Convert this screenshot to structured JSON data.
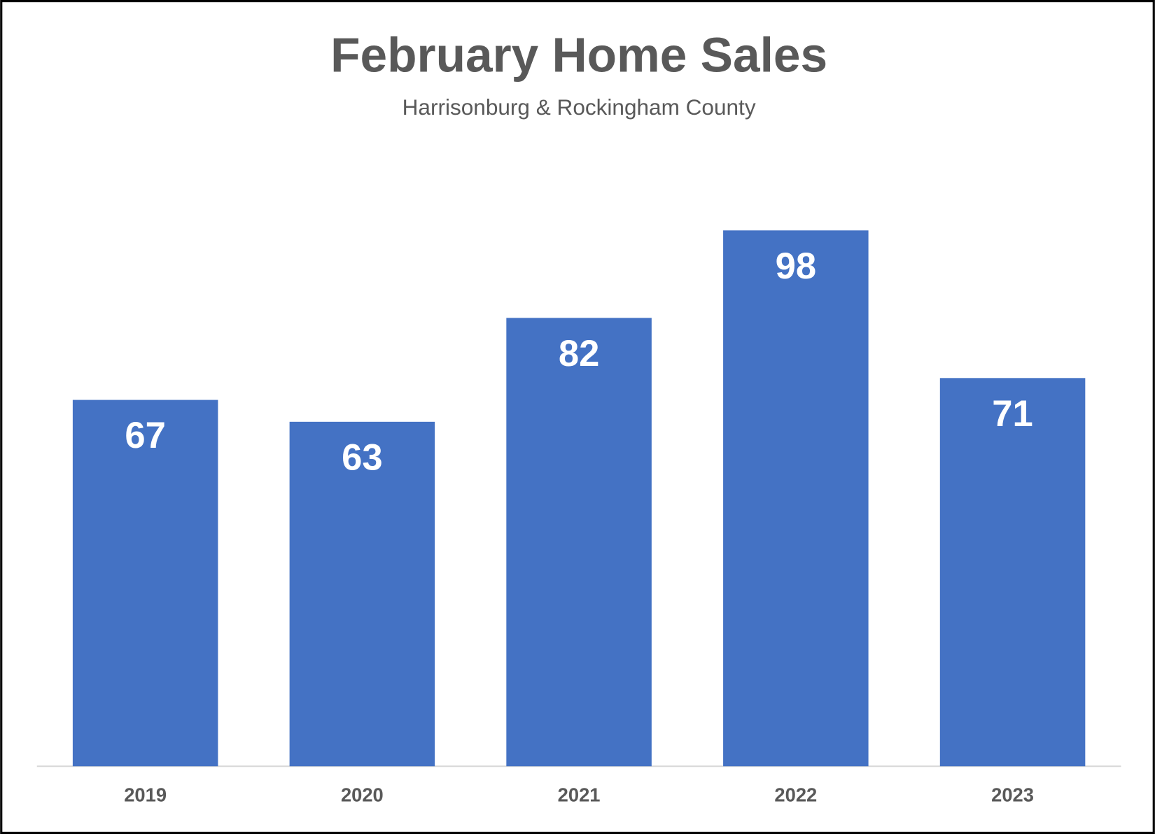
{
  "chart_data": {
    "type": "bar",
    "title": "February Home Sales",
    "subtitle": "Harrisonburg & Rockingham County",
    "categories": [
      "2019",
      "2020",
      "2021",
      "2022",
      "2023"
    ],
    "values": [
      67,
      63,
      82,
      98,
      71
    ],
    "color": "#4472c4"
  }
}
